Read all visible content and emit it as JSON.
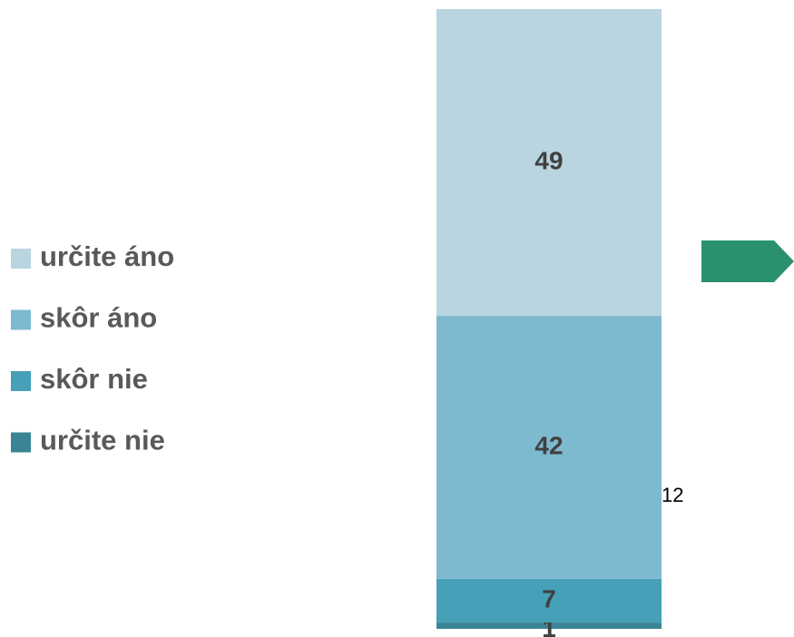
{
  "chart_data": {
    "type": "stacked_bar",
    "categories": [
      null
    ],
    "series": [
      {
        "name": "určite áno",
        "color": "#b8d5e0",
        "values": [
          49
        ]
      },
      {
        "name": "skôr áno",
        "color": "#7db9cf",
        "values": [
          42
        ]
      },
      {
        "name": "skôr nie",
        "color": "#45a0b8",
        "values": [
          7
        ]
      },
      {
        "name": "určite nie",
        "color": "#3a8496",
        "values": [
          1
        ]
      }
    ],
    "ylim": [
      0,
      99
    ],
    "annotations": [
      "12"
    ],
    "legend": "left"
  }
}
